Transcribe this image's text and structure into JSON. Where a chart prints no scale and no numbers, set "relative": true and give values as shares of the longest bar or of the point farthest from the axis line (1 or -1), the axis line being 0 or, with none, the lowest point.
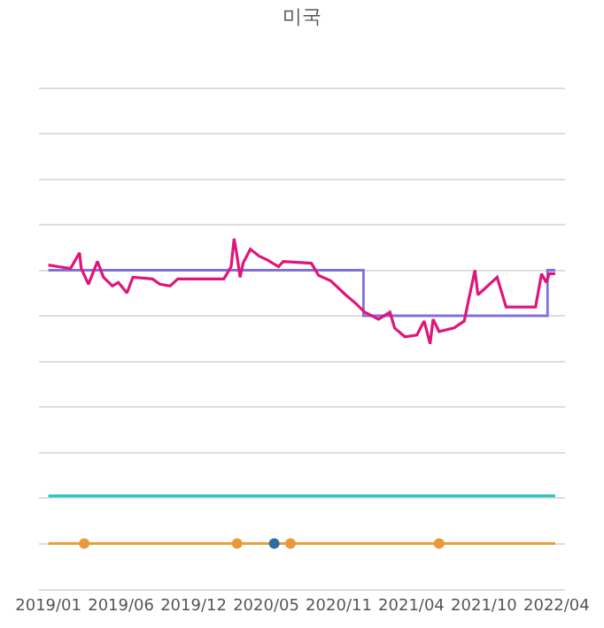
{
  "chart_data": {
    "type": "line",
    "title": "미국",
    "relative": true,
    "grid": "y",
    "xlim": [
      "2018-12-10",
      "2022-04-25"
    ],
    "xticks": [
      {
        "value": "2019-01-01",
        "label": "2019/01"
      },
      {
        "value": "2019-06-20",
        "label": "2019/06"
      },
      {
        "value": "2019-12-07",
        "label": "2019/12"
      },
      {
        "value": "2020-05-25",
        "label": "2020/05"
      },
      {
        "value": "2020-11-11",
        "label": "2020/11"
      },
      {
        "value": "2021-04-30",
        "label": "2021/04"
      },
      {
        "value": "2021-10-17",
        "label": "2021/10"
      },
      {
        "value": "2022-04-05",
        "label": "2022/04"
      }
    ],
    "series": [
      {
        "type": "step",
        "color": "#8070d8",
        "x": [
          "2019-01-01",
          "2021-01-08",
          "2022-03-15",
          "2022-04-02"
        ],
        "values": [
          0.91,
          0.78,
          0.91,
          0.91
        ]
      },
      {
        "color": "#e0157a",
        "x": [
          "2019-01-01",
          "2019-01-25",
          "2019-02-22",
          "2019-03-15",
          "2019-03-19",
          "2019-04-05",
          "2019-04-26",
          "2019-05-10",
          "2019-05-31",
          "2019-06-14",
          "2019-07-04",
          "2019-07-18",
          "2019-09-02",
          "2019-09-19",
          "2019-10-13",
          "2019-10-31",
          "2019-12-15",
          "2020-02-16",
          "2020-03-04",
          "2020-03-11",
          "2020-03-18",
          "2020-03-25",
          "2020-04-01",
          "2020-04-18",
          "2020-05-09",
          "2020-05-27",
          "2020-06-23",
          "2020-07-04",
          "2020-09-08",
          "2020-09-25",
          "2020-10-23",
          "2020-11-27",
          "2020-12-21",
          "2021-01-11",
          "2021-02-12",
          "2021-03-11",
          "2021-03-22",
          "2021-04-15",
          "2021-05-13",
          "2021-05-30",
          "2021-06-13",
          "2021-06-20",
          "2021-07-04",
          "2021-08-08",
          "2021-09-01",
          "2021-09-12",
          "2021-09-26",
          "2021-10-03",
          "2021-10-17",
          "2021-11-17",
          "2021-12-08",
          "2022-02-15",
          "2022-03-01",
          "2022-03-12",
          "2022-03-19",
          "2022-04-02"
        ],
        "values": [
          0.925,
          0.92,
          0.915,
          0.96,
          0.915,
          0.87,
          0.935,
          0.89,
          0.865,
          0.875,
          0.845,
          0.89,
          0.885,
          0.87,
          0.865,
          0.885,
          0.885,
          0.885,
          0.92,
          1,
          0.95,
          0.89,
          0.93,
          0.97,
          0.95,
          0.94,
          0.92,
          0.935,
          0.93,
          0.895,
          0.88,
          0.84,
          0.815,
          0.79,
          0.77,
          0.79,
          0.745,
          0.72,
          0.725,
          0.765,
          0.7,
          0.77,
          0.735,
          0.745,
          0.765,
          0.83,
          0.91,
          0.84,
          0.855,
          0.89,
          0.805,
          0.805,
          0.9,
          0.875,
          0.9,
          0.9
        ]
      },
      {
        "color": "#2ec4c0",
        "x": [
          "2019-01-01",
          "2022-04-02"
        ],
        "values": [
          0.266,
          0.266
        ]
      },
      {
        "color": "#e3a13c",
        "x": [
          "2019-01-01",
          "2022-04-02"
        ],
        "values": [
          0.13,
          0.13
        ]
      },
      {
        "type": "scatter",
        "color": "#e89a3a",
        "x": [
          "2019-03-26",
          "2020-03-18",
          "2020-07-21",
          "2021-07-04"
        ],
        "values": [
          0.13,
          0.13,
          0.13,
          0.13
        ]
      },
      {
        "type": "scatter",
        "color": "#2a6f9e",
        "x": [
          "2020-06-13"
        ],
        "values": [
          0.13
        ]
      }
    ]
  }
}
